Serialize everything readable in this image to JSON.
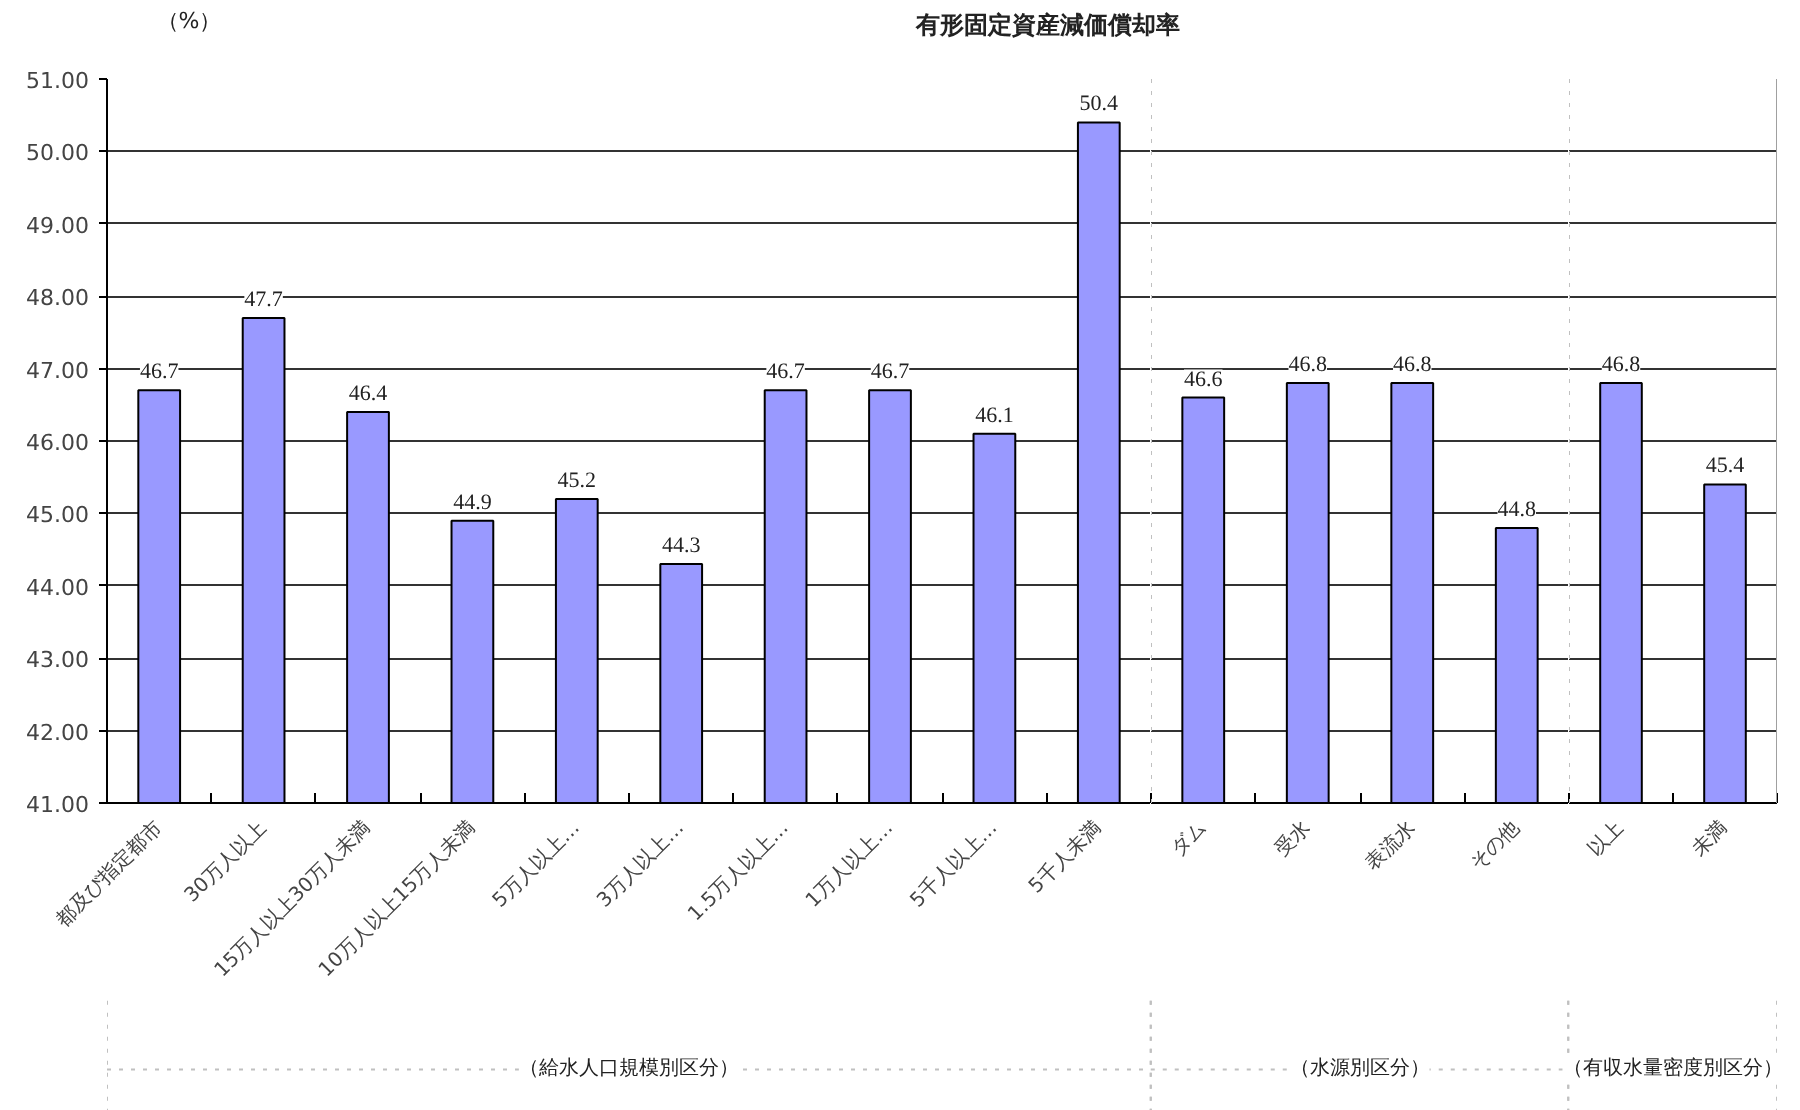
{
  "chart_data": [
    {
      "type": "bar",
      "title": "有形固定資産減価償却率",
      "ylabel": "（%）",
      "xlabel": "（給水人口規模別区分）",
      "categories": [
        "都及び指定都市",
        "30万人以上",
        "15万人以上30万人未満",
        "10万人以上15万人未満",
        "5万人以上…",
        "3万人以上…",
        "1.5万人以上…",
        "1万人以上…",
        "5千人以上…",
        "5千人未満"
      ],
      "values": [
        46.7,
        47.7,
        46.4,
        44.9,
        45.2,
        44.3,
        46.7,
        46.7,
        46.1,
        50.4
      ],
      "color": "#9999ff",
      "ylim": [
        41,
        51
      ],
      "yticks": [
        {
          "value": 41,
          "label": "41.00"
        },
        {
          "value": 42,
          "label": "42.00"
        },
        {
          "value": 43,
          "label": "43.00"
        },
        {
          "value": 44,
          "label": "44.00"
        },
        {
          "value": 45,
          "label": "45.00"
        },
        {
          "value": 46,
          "label": "46.00"
        },
        {
          "value": 47,
          "label": "47.00"
        },
        {
          "value": 48,
          "label": "48.00"
        },
        {
          "value": 49,
          "label": "49.00"
        },
        {
          "value": 50,
          "label": "50.00"
        },
        {
          "value": 51,
          "label": "51.00"
        }
      ],
      "grid": "y",
      "data_labels": true
    },
    {
      "type": "bar",
      "xlabel": "（水源別区分）",
      "categories": [
        "ダム",
        "受水",
        "表流水",
        "その他"
      ],
      "values": [
        46.6,
        46.8,
        46.8,
        44.8
      ],
      "color": "#9999ff",
      "ylim": [
        41,
        51
      ],
      "yticks": [
        41,
        42,
        43,
        44,
        45,
        46,
        47,
        48,
        49,
        50,
        51
      ],
      "grid": "y",
      "data_labels": true,
      "tick_labels": "x"
    },
    {
      "type": "bar",
      "xlabel": "（有収水量密度別区分）",
      "categories": [
        "以上",
        "未満"
      ],
      "values": [
        46.8,
        45.4
      ],
      "color": "#9999ff",
      "ylim": [
        41,
        51
      ],
      "yticks": [
        41,
        42,
        43,
        44,
        45,
        46,
        47,
        48,
        49,
        50,
        51
      ],
      "grid": "y",
      "data_labels": true,
      "tick_labels": "x"
    }
  ]
}
